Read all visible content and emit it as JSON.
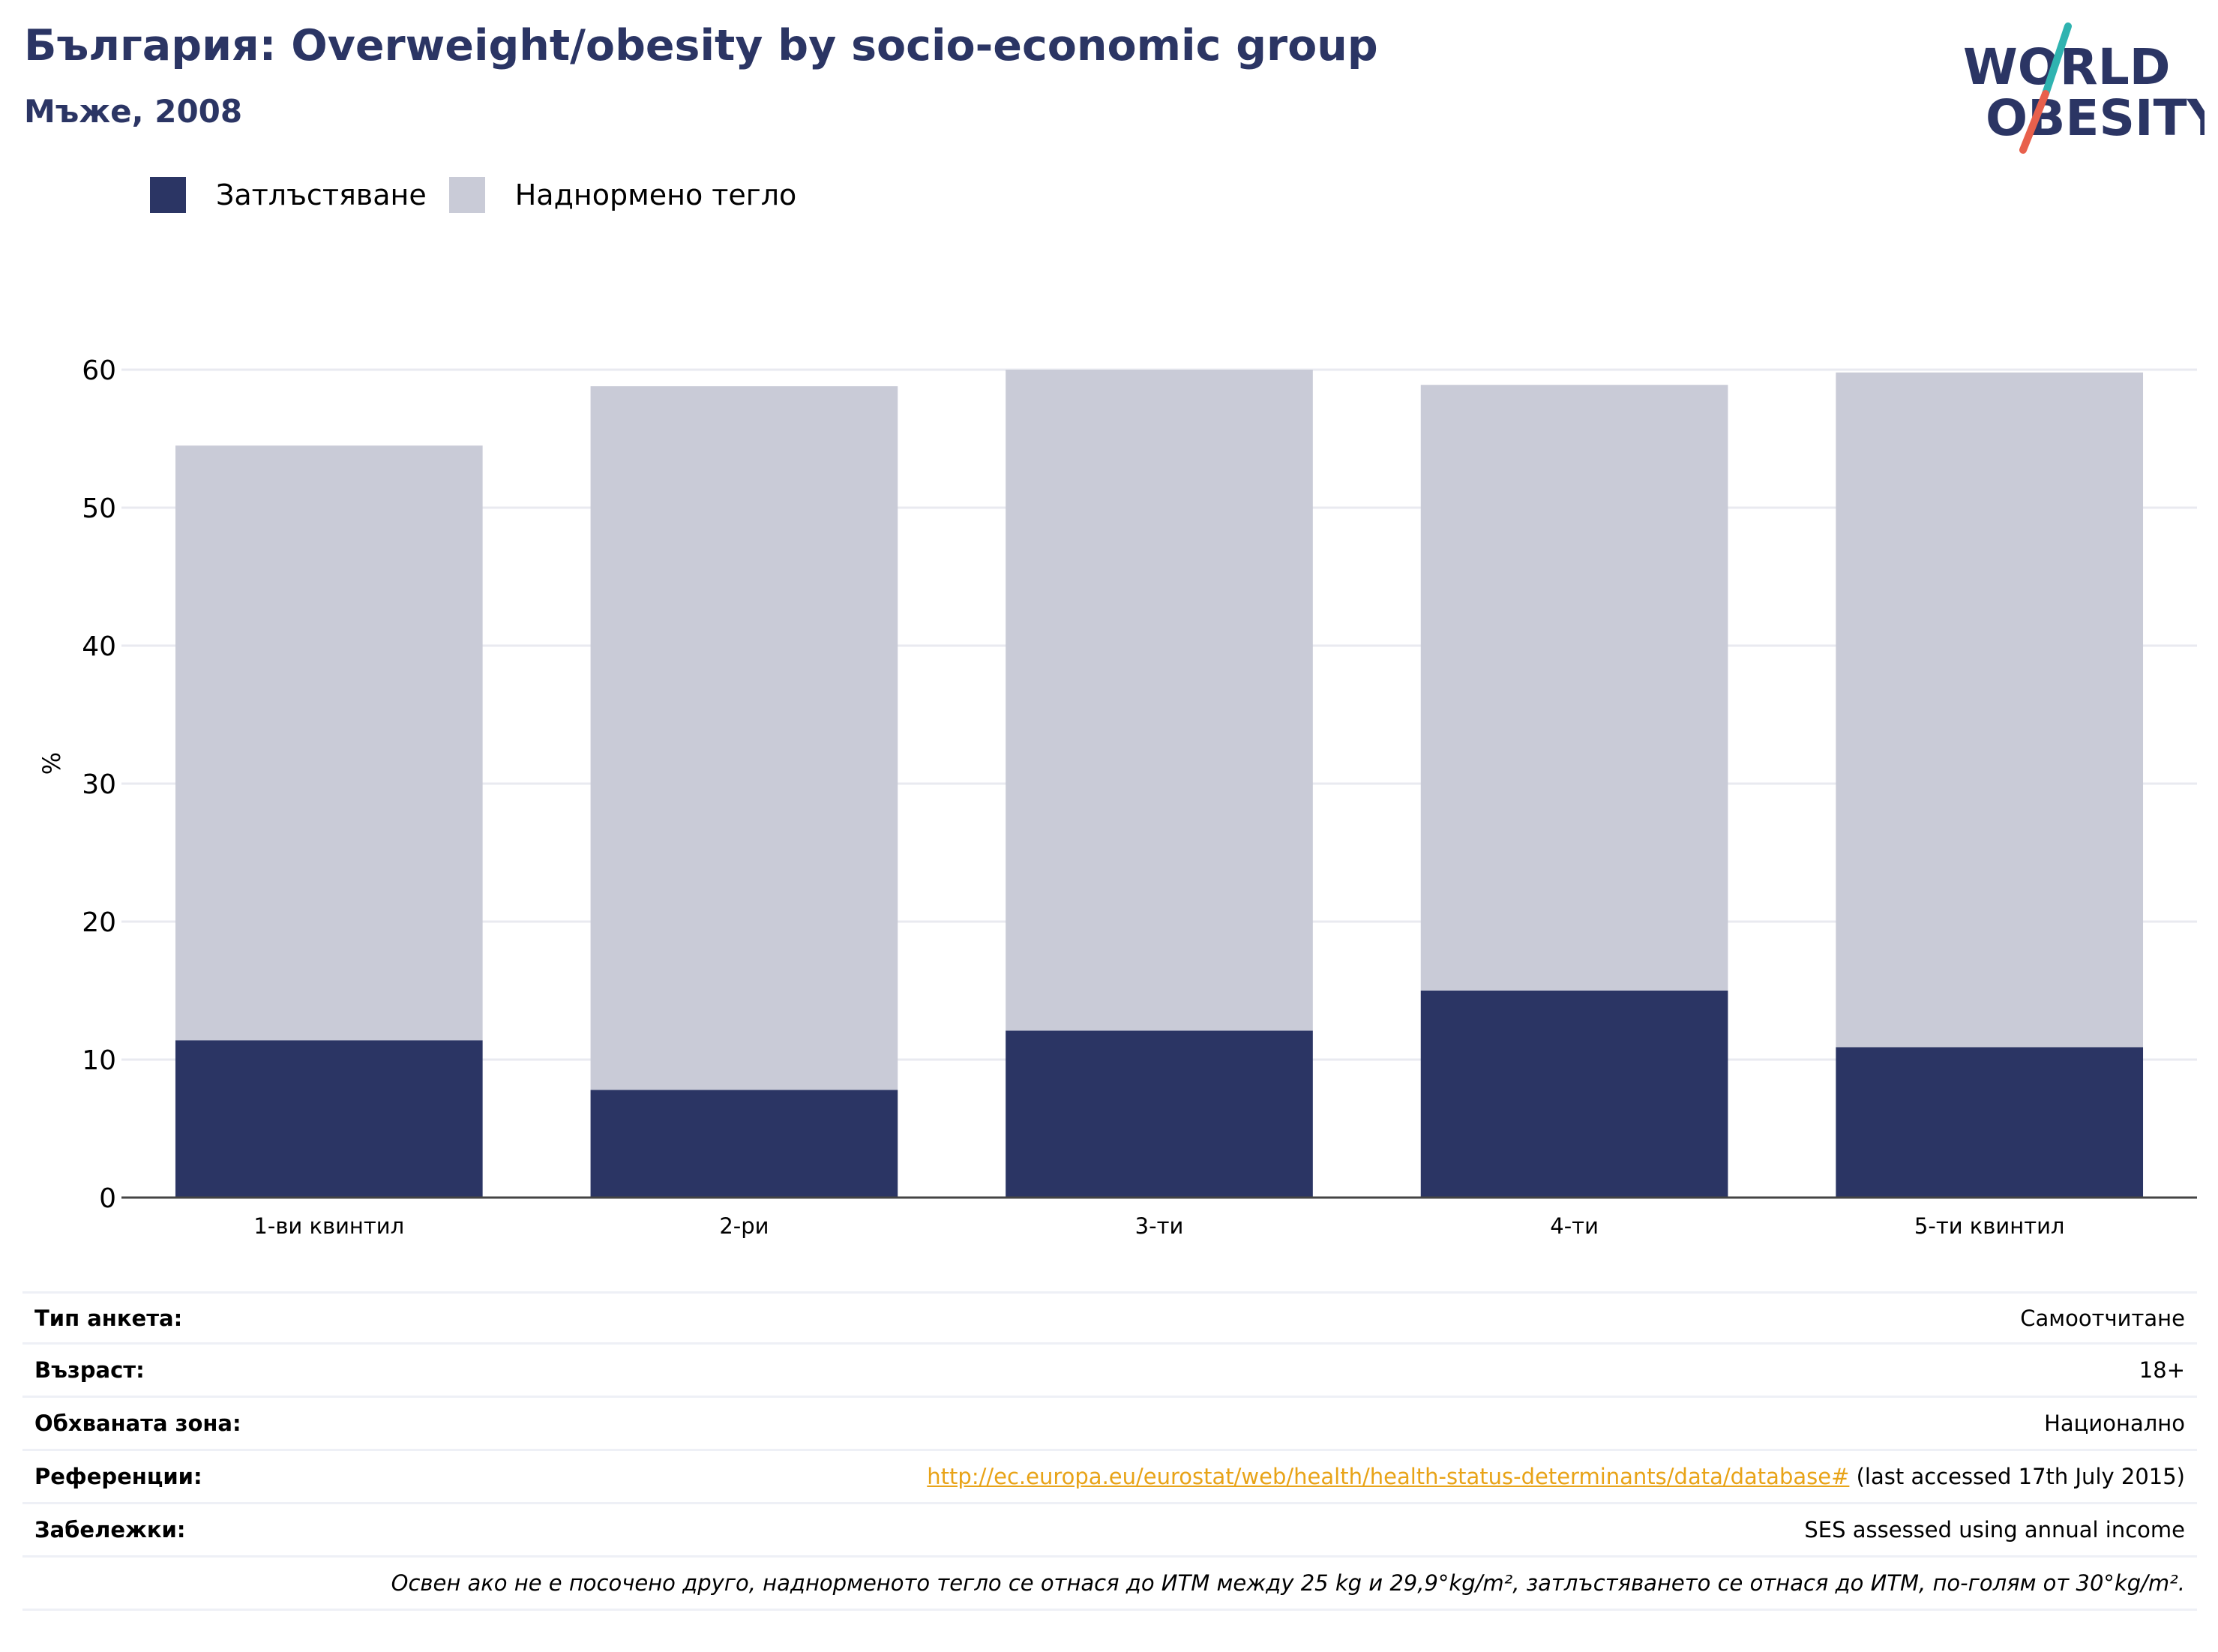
{
  "header": {
    "title": "България: Overweight/obesity by socio-economic group",
    "subtitle": "Мъже, 2008"
  },
  "logo": {
    "line1": "WORLD",
    "line2": "OBESITY",
    "colors": {
      "text": "#2b3564",
      "slash_top": "#2fb3b0",
      "slash_bottom": "#e8604c"
    }
  },
  "legend": [
    {
      "label": "Затлъстяване",
      "color": "#2b3564"
    },
    {
      "label": "Наднормено тегло",
      "color": "#c9cbd7"
    }
  ],
  "chart_data": {
    "type": "bar",
    "stacked": true,
    "categories": [
      "1-ви квинтил",
      "2-ри",
      "3-ти",
      "4-ти",
      "5-ти квинтил"
    ],
    "series": [
      {
        "name": "Затлъстяване",
        "color": "#2b3564",
        "values": [
          11.4,
          7.8,
          12.1,
          15.0,
          10.9
        ]
      },
      {
        "name": "Наднормено тегло",
        "color": "#c9cbd7",
        "values": [
          43.1,
          51.0,
          47.9,
          43.9,
          48.9
        ]
      }
    ],
    "ylabel": "%",
    "ylim": [
      0,
      60
    ],
    "yticks": [
      0,
      10,
      20,
      30,
      40,
      50,
      60
    ],
    "grid": true,
    "legend_position": "top-left"
  },
  "meta": {
    "survey_type": {
      "key": "Тип анкета:",
      "value": "Самоотчитане"
    },
    "age": {
      "key": "Възраст:",
      "value": "18+"
    },
    "area": {
      "key": "Обхваната зона:",
      "value": "Национално"
    },
    "references": {
      "key": "Референции:",
      "link": "http://ec.europa.eu/eurostat/web/health/health-status-determinants/data/database#",
      "suffix": " (last accessed 17th July 2015)"
    },
    "notes": {
      "key": "Забележки:",
      "value": "SES assessed using annual income"
    },
    "footnote": "Освен ако не е посочено друго, наднорменото тегло се отнася до ИТМ между 25 kg и 29,9°kg/m², затлъстяването се отнася до ИТМ, по-голям от 30°kg/m²."
  }
}
